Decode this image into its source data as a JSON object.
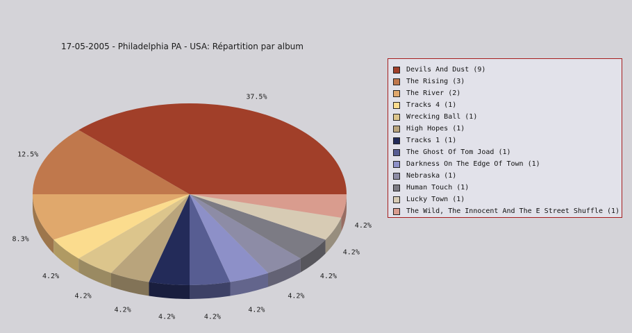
{
  "chart_data": {
    "type": "pie",
    "title": "17-05-2005 - Philadelphia PA - USA:  Répartition par album",
    "legend_position": "right",
    "slices": [
      {
        "label": "Devils And Dust (9)",
        "value": 9,
        "percent_label": "37.5%",
        "color": "#a13f29"
      },
      {
        "label": "The Rising (3)",
        "value": 3,
        "percent_label": "12.5%",
        "color": "#c0784c"
      },
      {
        "label": "The River (2)",
        "value": 2,
        "percent_label": "8.3%",
        "color": "#e0a86c"
      },
      {
        "label": "Tracks 4 (1)",
        "value": 1,
        "percent_label": "4.2%",
        "color": "#fbdc8e"
      },
      {
        "label": "Wrecking Ball (1)",
        "value": 1,
        "percent_label": "4.2%",
        "color": "#dcc58c"
      },
      {
        "label": "High Hopes (1)",
        "value": 1,
        "percent_label": "4.2%",
        "color": "#b9a47c"
      },
      {
        "label": "Tracks 1 (1)",
        "value": 1,
        "percent_label": "4.2%",
        "color": "#232b59"
      },
      {
        "label": "The Ghost Of Tom Joad (1)",
        "value": 1,
        "percent_label": "4.2%",
        "color": "#575d92"
      },
      {
        "label": "Darkness On The Edge Of Town (1)",
        "value": 1,
        "percent_label": "4.2%",
        "color": "#8d90c8"
      },
      {
        "label": "Nebraska (1)",
        "value": 1,
        "percent_label": "4.2%",
        "color": "#8d8ca6"
      },
      {
        "label": "Human Touch (1)",
        "value": 1,
        "percent_label": "4.2%",
        "color": "#7c7b84"
      },
      {
        "label": "Lucky Town (1)",
        "value": 1,
        "percent_label": "4.2%",
        "color": "#d7cbb4"
      },
      {
        "label": "The Wild, The Innocent And The E Street Shuffle (1)",
        "value": 1,
        "percent_label": "4.2%",
        "color": "#d99c8e"
      }
    ]
  }
}
